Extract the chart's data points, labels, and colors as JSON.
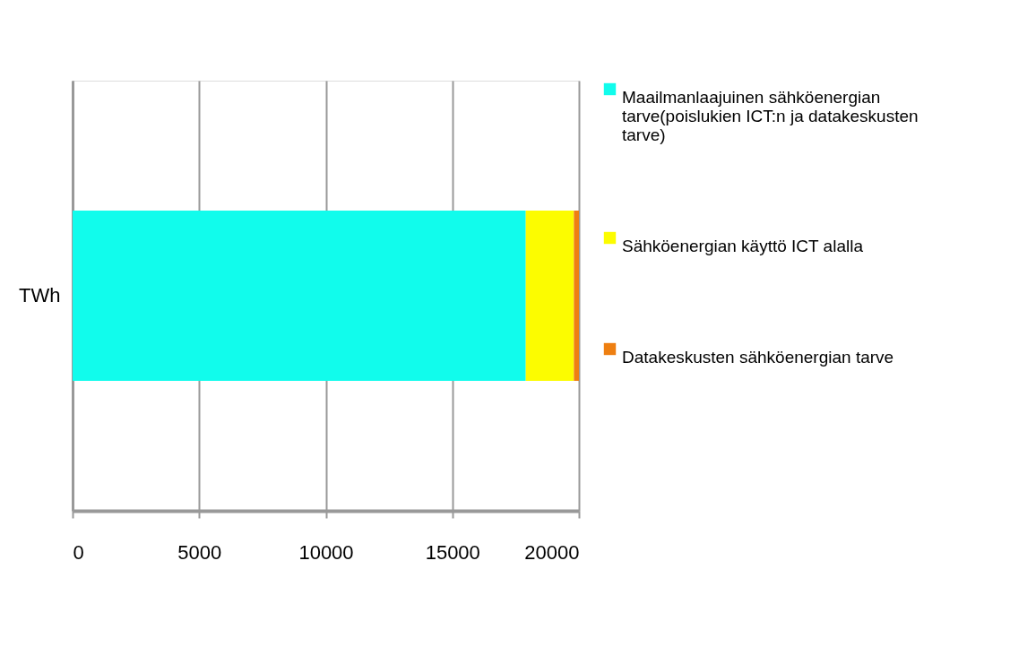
{
  "chart_data": {
    "type": "bar",
    "orientation": "horizontal",
    "stacked": true,
    "categories": [
      "TWh"
    ],
    "series": [
      {
        "name": "Maailmanlaajuinen sähköenergian tarve(poislukien ICT:n ja datakeskusten tarve)",
        "color": "#11fcec",
        "values": [
          17900
        ]
      },
      {
        "name": "Sähköenergian käyttö ICT alalla",
        "color": "#fcfc00",
        "values": [
          1900
        ]
      },
      {
        "name": "Datakeskusten sähköenergian tarve",
        "color": "#ee7f11",
        "values": [
          200
        ]
      }
    ],
    "xlim": [
      0,
      20000
    ],
    "xticks": [
      0,
      5000,
      10000,
      15000,
      20000
    ],
    "grid": "x",
    "legend": "right"
  }
}
